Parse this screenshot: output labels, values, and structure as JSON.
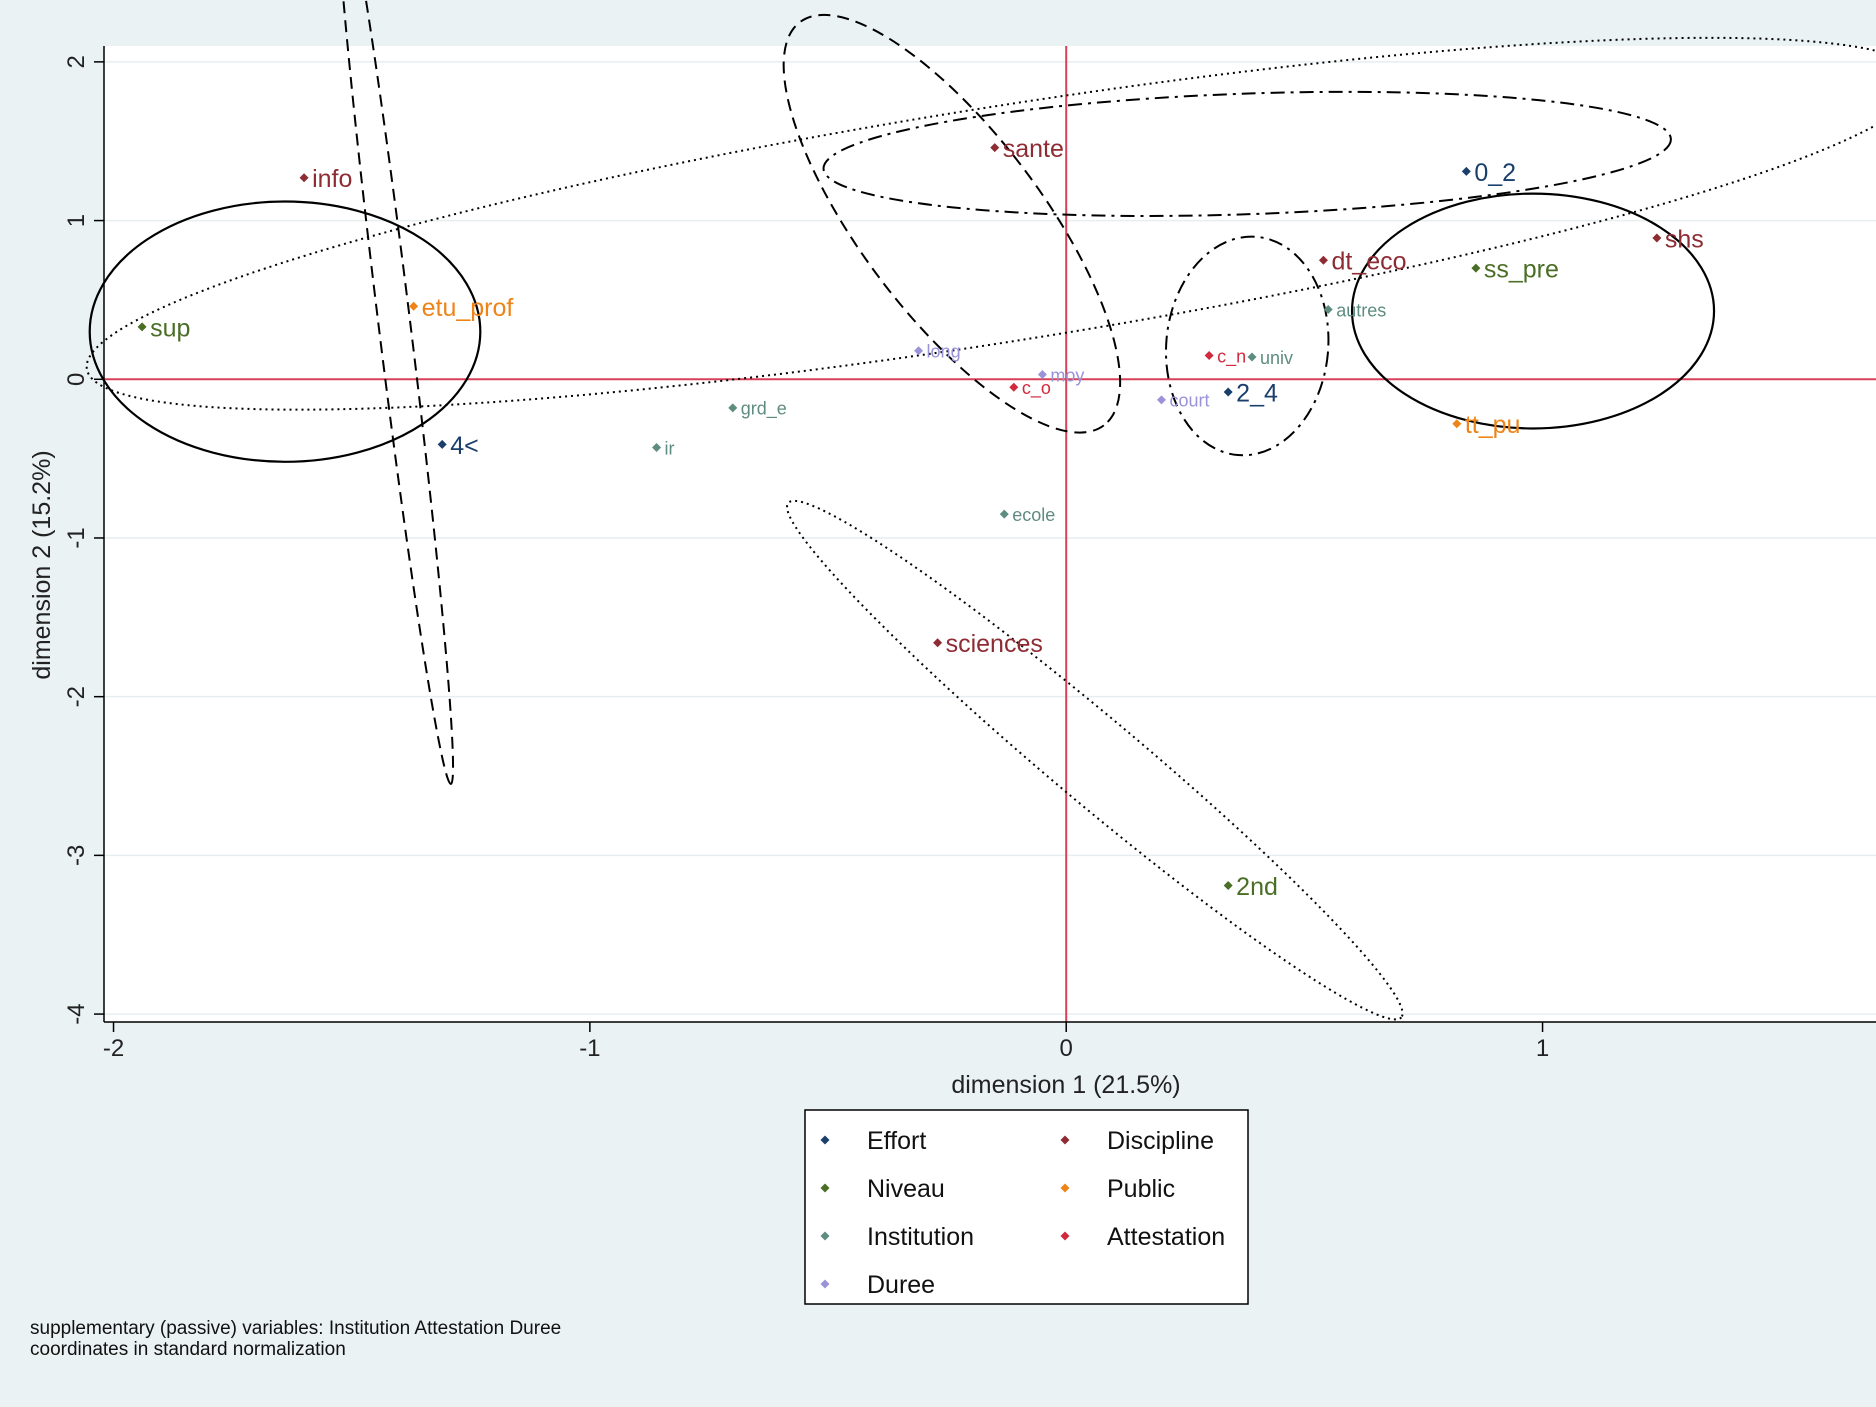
{
  "chart_data": {
    "type": "scatter",
    "title": "",
    "xlabel": "dimension 1 (21.5%)",
    "ylabel": "dimension 2 (15.2%)",
    "xlim": [
      -2.02,
      1.7
    ],
    "ylim": [
      -4.05,
      2.1
    ],
    "xticks": [
      -2,
      -1,
      0,
      1
    ],
    "yticks": [
      2,
      1,
      0,
      -1,
      -2,
      -3,
      -4
    ],
    "tick_labels_x": [
      "-2",
      "-1",
      "0",
      "1"
    ],
    "tick_labels_y": [
      "2",
      "1",
      "0",
      "-1",
      "-2",
      "-3",
      "-4"
    ],
    "grid": true,
    "reference_lines": {
      "x": 0,
      "y": 0,
      "color": "#d64058"
    },
    "legend_position": "bottom-center",
    "series": [
      {
        "name": "Effort",
        "color": "#1a3f6b",
        "points": [
          {
            "label": "0_2",
            "x": 0.84,
            "y": 1.31
          },
          {
            "label": "2_4",
            "x": 0.34,
            "y": -0.08
          },
          {
            "label": "4<",
            "x": -1.31,
            "y": -0.41
          }
        ]
      },
      {
        "name": "Niveau",
        "color": "#4a6e26",
        "points": [
          {
            "label": "sup",
            "x": -1.94,
            "y": 0.33
          },
          {
            "label": "ss_pre",
            "x": 0.86,
            "y": 0.7
          },
          {
            "label": "2nd",
            "x": 0.34,
            "y": -3.19
          }
        ]
      },
      {
        "name": "Institution",
        "color": "#5f8c80",
        "points": [
          {
            "label": "autres",
            "x": 0.55,
            "y": 0.44
          },
          {
            "label": "grd_e",
            "x": -0.7,
            "y": -0.18
          },
          {
            "label": "ir",
            "x": -0.86,
            "y": -0.43
          },
          {
            "label": "ecole",
            "x": -0.13,
            "y": -0.85
          },
          {
            "label": "univ",
            "x": 0.39,
            "y": 0.14
          }
        ]
      },
      {
        "name": "Duree",
        "color": "#9a93d8",
        "points": [
          {
            "label": "long",
            "x": -0.31,
            "y": 0.18
          },
          {
            "label": "moy",
            "x": -0.05,
            "y": 0.03
          },
          {
            "label": "court",
            "x": 0.2,
            "y": -0.13
          }
        ]
      },
      {
        "name": "Discipline",
        "color": "#8e2c34",
        "points": [
          {
            "label": "info",
            "x": -1.6,
            "y": 1.27
          },
          {
            "label": "sante",
            "x": -0.15,
            "y": 1.46
          },
          {
            "label": "dt_eco",
            "x": 0.54,
            "y": 0.75
          },
          {
            "label": "shs",
            "x": 1.24,
            "y": 0.89
          },
          {
            "label": "sciences",
            "x": -0.27,
            "y": -1.66
          }
        ]
      },
      {
        "name": "Public",
        "color": "#ee8418",
        "points": [
          {
            "label": "etu_prof",
            "x": -1.37,
            "y": 0.46
          },
          {
            "label": "tt_pu",
            "x": 0.82,
            "y": -0.28
          }
        ]
      },
      {
        "name": "Attestation",
        "color": "#d12a3e",
        "points": [
          {
            "label": "c_n",
            "x": 0.3,
            "y": 0.15
          },
          {
            "label": "c_o",
            "x": -0.11,
            "y": -0.05
          }
        ]
      }
    ],
    "ellipses": [
      {
        "cx": -1.64,
        "cy": 0.3,
        "rx": 0.41,
        "ry": 0.82,
        "rotate": 0,
        "style": "solid"
      },
      {
        "cx": 0.98,
        "cy": 0.43,
        "rx": 0.38,
        "ry": 0.74,
        "rotate": 0,
        "style": "solid"
      },
      {
        "cx": -0.24,
        "cy": 0.98,
        "rx": 0.53,
        "ry": 0.57,
        "rotate": 53,
        "style": "dashed"
      },
      {
        "cx": -1.41,
        "cy": 0.34,
        "rx": 0.97,
        "ry": 0.1,
        "rotate": 83,
        "style": "dashed"
      },
      {
        "cx": 0.38,
        "cy": 1.42,
        "rx": 0.89,
        "ry": 0.38,
        "rotate": -2,
        "style": "dashdot"
      },
      {
        "cx": 0.38,
        "cy": 0.21,
        "rx": 0.17,
        "ry": 0.69,
        "rotate": 5,
        "style": "dashdot"
      },
      {
        "cx": -0.13,
        "cy": 0.98,
        "rx": 1.95,
        "ry": 0.74,
        "rotate": -9,
        "style": "dotted"
      },
      {
        "cx": 0.06,
        "cy": -2.4,
        "rx": 0.84,
        "ry": 0.27,
        "rotate": 40,
        "style": "dotted"
      }
    ],
    "note": [
      "supplementary (passive) variables: Institution Attestation Duree",
      "coordinates in standard normalization"
    ]
  }
}
